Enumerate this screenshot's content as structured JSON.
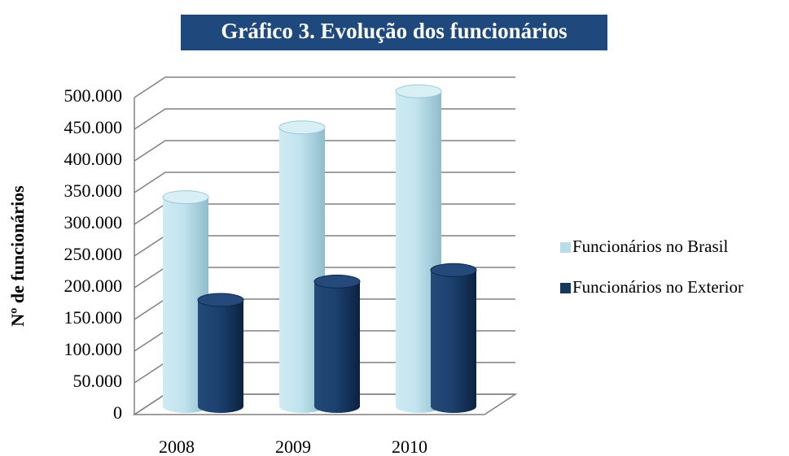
{
  "chart_data": {
    "type": "bar3d",
    "title": "Gráfico 3. Evolução dos funcionários",
    "y_label": "Nº de funcionários",
    "categories": [
      "2008",
      "2009",
      "2010"
    ],
    "series": [
      {
        "name": "Funcionários no Brasil",
        "color": "#b7dde8",
        "values": [
          330000,
          440000,
          497000
        ]
      },
      {
        "name": "Funcionários no Exterior",
        "color": "#17375e",
        "values": [
          168000,
          197000,
          215000
        ]
      }
    ],
    "ylim": [
      0,
      500000
    ],
    "yticks": [
      0,
      {
        "value": 50000,
        "label": "50.000"
      },
      {
        "value": 100000,
        "label": "100.000"
      },
      {
        "value": 150000,
        "label": "150.000"
      },
      {
        "value": 200000,
        "label": "200.000"
      },
      {
        "value": 250000,
        "label": "250.000"
      },
      {
        "value": 300000,
        "label": "300.000"
      },
      {
        "value": 350000,
        "label": "350.000"
      },
      {
        "value": 400000,
        "label": "400.000"
      },
      {
        "value": 450000,
        "label": "450.000"
      },
      {
        "value": 500000,
        "label": "500.000"
      }
    ],
    "grid": true,
    "legend": "right"
  }
}
